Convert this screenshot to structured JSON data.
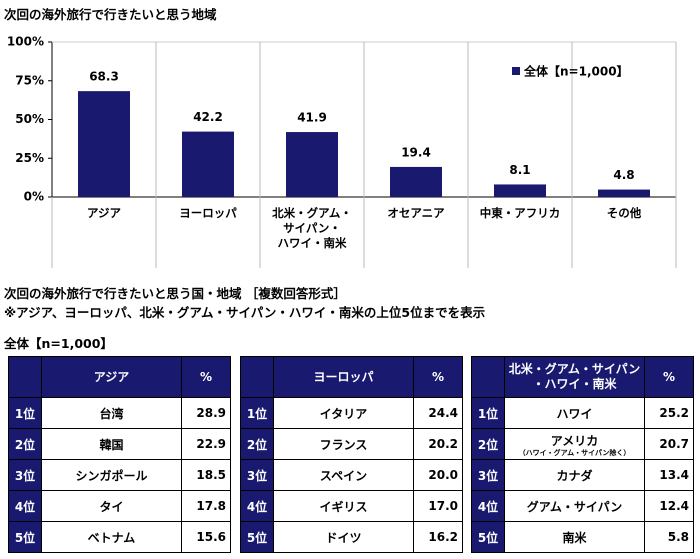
{
  "chart_data": {
    "type": "bar",
    "title": "次回の海外旅行で行きたいと思う地域",
    "categories": [
      "アジア",
      "ヨーロッパ",
      "北米・グアム・\nサイパン・\nハワイ・南米",
      "オセアニア",
      "中東・アフリカ",
      "その他"
    ],
    "series": [
      {
        "name": "全体【n=1,000】",
        "color": "#191970",
        "values": [
          68.3,
          42.2,
          41.9,
          19.4,
          8.1,
          4.8
        ]
      }
    ],
    "ylim": [
      0,
      100
    ],
    "yticks": [
      {
        "value": 0,
        "label": "0%"
      },
      {
        "value": 25,
        "label": "25%"
      },
      {
        "value": 50,
        "label": "50%"
      },
      {
        "value": 75,
        "label": "75%"
      },
      {
        "value": 100,
        "label": "100%"
      }
    ],
    "legend": "top-right"
  },
  "tables_section": {
    "title": "次回の海外旅行で行きたいと思う国・地域 ［複数回答形式］",
    "note": "※アジア、ヨーロッパ、北米・グアム・サイパン・ハワイ・南米の上位5位までを表示",
    "sample": "全体【n=1,000】",
    "tables": [
      {
        "header": "アジア",
        "unit": "%",
        "rows": [
          {
            "rank": "1位",
            "name": "台湾",
            "value": "28.9"
          },
          {
            "rank": "2位",
            "name": "韓国",
            "value": "22.9"
          },
          {
            "rank": "3位",
            "name": "シンガポール",
            "value": "18.5"
          },
          {
            "rank": "4位",
            "name": "タイ",
            "value": "17.8"
          },
          {
            "rank": "5位",
            "name": "ベトナム",
            "value": "15.6"
          }
        ]
      },
      {
        "header": "ヨーロッパ",
        "unit": "%",
        "rows": [
          {
            "rank": "1位",
            "name": "イタリア",
            "value": "24.4"
          },
          {
            "rank": "2位",
            "name": "フランス",
            "value": "20.2"
          },
          {
            "rank": "3位",
            "name": "スペイン",
            "value": "20.0"
          },
          {
            "rank": "4位",
            "name": "イギリス",
            "value": "17.0"
          },
          {
            "rank": "5位",
            "name": "ドイツ",
            "value": "16.2"
          }
        ]
      },
      {
        "header": "北米・グアム・サイパン\n・ハワイ・南米",
        "unit": "%",
        "rows": [
          {
            "rank": "1位",
            "name": "ハワイ",
            "value": "25.2"
          },
          {
            "rank": "2位",
            "name": "アメリカ",
            "note": "（ハワイ・グアム・サイパン除く）",
            "value": "20.7"
          },
          {
            "rank": "3位",
            "name": "カナダ",
            "value": "13.4"
          },
          {
            "rank": "4位",
            "name": "グアム・サイパン",
            "value": "12.4"
          },
          {
            "rank": "5位",
            "name": "南米",
            "value": "5.8"
          }
        ]
      }
    ]
  }
}
